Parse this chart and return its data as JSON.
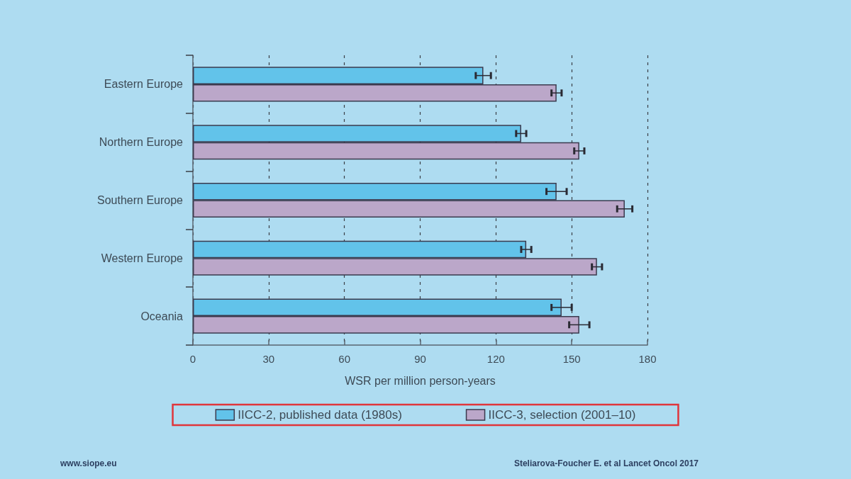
{
  "chart_data": {
    "type": "bar",
    "orientation": "horizontal",
    "categories": [
      "Eastern Europe",
      "Northern Europe",
      "Southern Europe",
      "Western Europe",
      "Oceania"
    ],
    "series": [
      {
        "name": "IICC-2, published data (1980s)",
        "color": "#62c3ea",
        "values": [
          115,
          130,
          144,
          132,
          146
        ],
        "errors": [
          3,
          2,
          4,
          2,
          4
        ]
      },
      {
        "name": "IICC-3, selection (2001–10)",
        "color": "#bba7c9",
        "values": [
          144,
          153,
          171,
          160,
          153
        ],
        "errors": [
          2,
          2,
          3,
          2,
          4
        ]
      }
    ],
    "xlabel": "WSR per million person-years",
    "xlim": [
      0,
      180
    ],
    "xticks": [
      0,
      30,
      60,
      90,
      120,
      150,
      180
    ],
    "grid": "x",
    "legend": "bottom",
    "annotations": [
      "www.siope.eu",
      "Steliarova-Foucher E. et al Lancet Oncol 2017"
    ]
  }
}
